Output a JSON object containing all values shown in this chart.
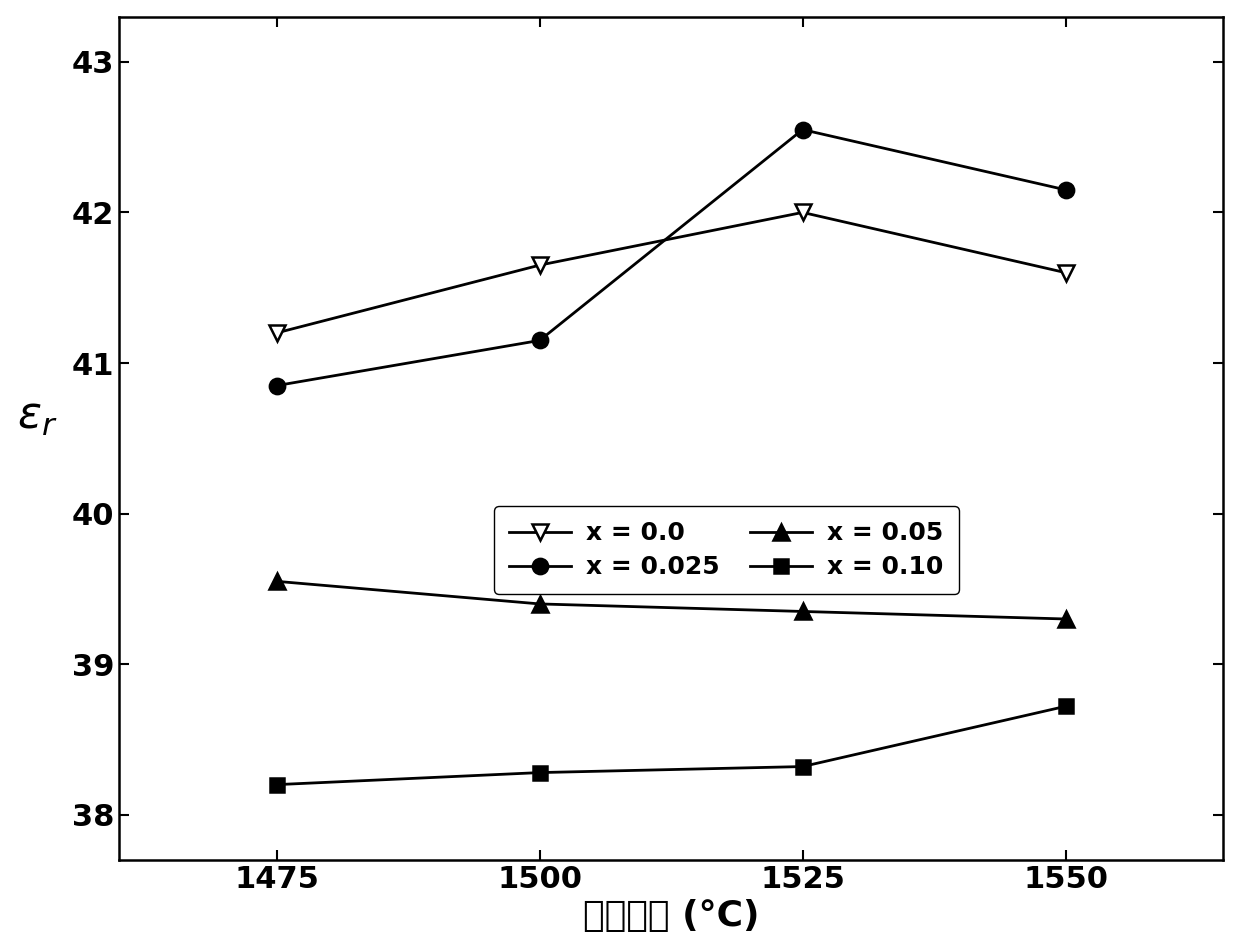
{
  "x": [
    1475,
    1500,
    1525,
    1550
  ],
  "series": [
    {
      "label": "x = 0.0",
      "y": [
        41.2,
        41.65,
        42.0,
        41.6
      ],
      "marker": "v",
      "markerfacecolor": "white",
      "markeredgecolor": "black",
      "color": "black",
      "markersize": 11,
      "linewidth": 2.0
    },
    {
      "label": "x = 0.025",
      "y": [
        40.85,
        41.15,
        42.55,
        42.15
      ],
      "marker": "o",
      "markerfacecolor": "black",
      "markeredgecolor": "black",
      "color": "black",
      "markersize": 11,
      "linewidth": 2.0
    },
    {
      "label": "x = 0.05",
      "y": [
        39.55,
        39.4,
        39.35,
        39.3
      ],
      "marker": "^",
      "markerfacecolor": "black",
      "markeredgecolor": "black",
      "color": "black",
      "markersize": 11,
      "linewidth": 2.0
    },
    {
      "label": "x = 0.10",
      "y": [
        38.2,
        38.28,
        38.32,
        38.72
      ],
      "marker": "s",
      "markerfacecolor": "black",
      "markeredgecolor": "black",
      "color": "black",
      "markersize": 10,
      "linewidth": 2.0
    }
  ],
  "xlabel": "烧结温度 (°C)",
  "ylabel": "$\\varepsilon_r$",
  "xlim": [
    1460,
    1565
  ],
  "ylim": [
    37.7,
    43.3
  ],
  "yticks": [
    38,
    39,
    40,
    41,
    42,
    43
  ],
  "xticks": [
    1475,
    1500,
    1525,
    1550
  ],
  "label_fontsize": 26,
  "tick_fontsize": 22,
  "legend_fontsize": 18,
  "background_color": "#ffffff"
}
